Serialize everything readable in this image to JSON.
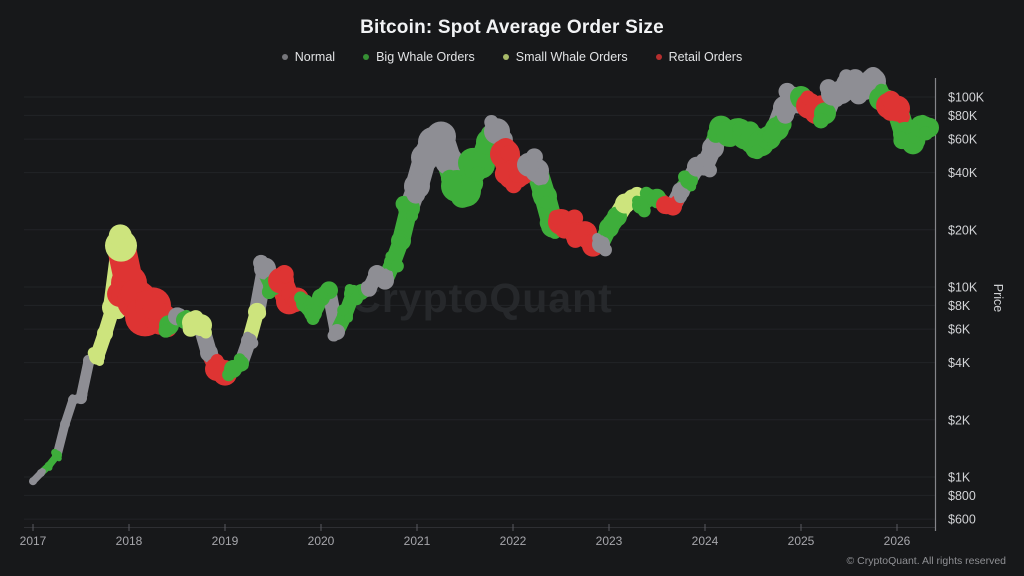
{
  "header": {
    "title": "Bitcoin: Spot Average Order Size"
  },
  "footer": {
    "copyright": "© CryptoQuant. All rights reserved"
  },
  "watermark": "CryptoQuant",
  "chart_data": {
    "type": "scatter",
    "title": "Bitcoin: Spot Average Order Size",
    "ylabel": "Price",
    "y_scale": "log",
    "grid": true,
    "legend_position": "top",
    "x_ticks": [
      "2017",
      "2018",
      "2019",
      "2020",
      "2021",
      "2022",
      "2023",
      "2024",
      "2025",
      "2026"
    ],
    "y_ticks": [
      {
        "label": "$100K",
        "value": 100000
      },
      {
        "label": "$80K",
        "value": 80000
      },
      {
        "label": "$60K",
        "value": 60000
      },
      {
        "label": "$40K",
        "value": 40000
      },
      {
        "label": "$20K",
        "value": 20000
      },
      {
        "label": "$10K",
        "value": 10000
      },
      {
        "label": "$8K",
        "value": 8000
      },
      {
        "label": "$6K",
        "value": 6000
      },
      {
        "label": "$4K",
        "value": 4000
      },
      {
        "label": "$2K",
        "value": 2000
      },
      {
        "label": "$1K",
        "value": 1000
      },
      {
        "label": "$800",
        "value": 800
      },
      {
        "label": "$600",
        "value": 600
      }
    ],
    "legend": [
      {
        "key": "normal",
        "label": "Normal"
      },
      {
        "key": "big_whale",
        "label": "Big Whale Orders"
      },
      {
        "key": "small_whale",
        "label": "Small Whale Orders"
      },
      {
        "key": "retail",
        "label": "Retail Orders"
      }
    ],
    "colors": {
      "normal": "#8e8e94",
      "big_whale": "#3eae3b",
      "small_whale": "#cde47d",
      "retail": "#de3433"
    },
    "size_meaning": "marker radius encodes spot average order size (px)",
    "points": [
      {
        "t": "2017-01",
        "price": 950,
        "category": "normal",
        "size": 4
      },
      {
        "t": "2017-02",
        "price": 1050,
        "category": "normal",
        "size": 4
      },
      {
        "t": "2017-03",
        "price": 1150,
        "category": "big_whale",
        "size": 4
      },
      {
        "t": "2017-04",
        "price": 1300,
        "category": "big_whale",
        "size": 5
      },
      {
        "t": "2017-05",
        "price": 1900,
        "category": "normal",
        "size": 5
      },
      {
        "t": "2017-06",
        "price": 2550,
        "category": "normal",
        "size": 5
      },
      {
        "t": "2017-07",
        "price": 2600,
        "category": "normal",
        "size": 6
      },
      {
        "t": "2017-08",
        "price": 4100,
        "category": "normal",
        "size": 6
      },
      {
        "t": "2017-09",
        "price": 4300,
        "category": "small_whale",
        "size": 8
      },
      {
        "t": "2017-10",
        "price": 5700,
        "category": "small_whale",
        "size": 8
      },
      {
        "t": "2017-11",
        "price": 7800,
        "category": "small_whale",
        "size": 11
      },
      {
        "t": "2017-12",
        "price": 16500,
        "category": "small_whale",
        "size": 16
      },
      {
        "t": "2018-01",
        "price": 10500,
        "category": "retail",
        "size": 18
      },
      {
        "t": "2018-02",
        "price": 8500,
        "category": "retail",
        "size": 20
      },
      {
        "t": "2018-03",
        "price": 7000,
        "category": "retail",
        "size": 20
      },
      {
        "t": "2018-04",
        "price": 8000,
        "category": "retail",
        "size": 18
      },
      {
        "t": "2018-05",
        "price": 6800,
        "category": "retail",
        "size": 16
      },
      {
        "t": "2018-06",
        "price": 6300,
        "category": "big_whale",
        "size": 10
      },
      {
        "t": "2018-07",
        "price": 7000,
        "category": "normal",
        "size": 9
      },
      {
        "t": "2018-08",
        "price": 6700,
        "category": "big_whale",
        "size": 9
      },
      {
        "t": "2018-09",
        "price": 6500,
        "category": "small_whale",
        "size": 11
      },
      {
        "t": "2018-10",
        "price": 6300,
        "category": "small_whale",
        "size": 11
      },
      {
        "t": "2018-11",
        "price": 4500,
        "category": "normal",
        "size": 9
      },
      {
        "t": "2018-12",
        "price": 3700,
        "category": "retail",
        "size": 12
      },
      {
        "t": "2019-01",
        "price": 3500,
        "category": "retail",
        "size": 12
      },
      {
        "t": "2019-02",
        "price": 3700,
        "category": "big_whale",
        "size": 9
      },
      {
        "t": "2019-03",
        "price": 3950,
        "category": "big_whale",
        "size": 8
      },
      {
        "t": "2019-04",
        "price": 5200,
        "category": "normal",
        "size": 8
      },
      {
        "t": "2019-05",
        "price": 7400,
        "category": "small_whale",
        "size": 9
      },
      {
        "t": "2019-06",
        "price": 12500,
        "category": "normal",
        "size": 11
      },
      {
        "t": "2019-07",
        "price": 10200,
        "category": "big_whale",
        "size": 10
      },
      {
        "t": "2019-08",
        "price": 10800,
        "category": "retail",
        "size": 13
      },
      {
        "t": "2019-09",
        "price": 8400,
        "category": "retail",
        "size": 13
      },
      {
        "t": "2019-10",
        "price": 8600,
        "category": "retail",
        "size": 12
      },
      {
        "t": "2019-11",
        "price": 8200,
        "category": "big_whale",
        "size": 9
      },
      {
        "t": "2019-12",
        "price": 7300,
        "category": "big_whale",
        "size": 9
      },
      {
        "t": "2020-01",
        "price": 8800,
        "category": "big_whale",
        "size": 9
      },
      {
        "t": "2020-02",
        "price": 9600,
        "category": "big_whale",
        "size": 9
      },
      {
        "t": "2020-03",
        "price": 5800,
        "category": "normal",
        "size": 8
      },
      {
        "t": "2020-04",
        "price": 7100,
        "category": "big_whale",
        "size": 8
      },
      {
        "t": "2020-05",
        "price": 9200,
        "category": "big_whale",
        "size": 9
      },
      {
        "t": "2020-06",
        "price": 9400,
        "category": "big_whale",
        "size": 8
      },
      {
        "t": "2020-07",
        "price": 9800,
        "category": "normal",
        "size": 8
      },
      {
        "t": "2020-08",
        "price": 11700,
        "category": "normal",
        "size": 9
      },
      {
        "t": "2020-09",
        "price": 10800,
        "category": "normal",
        "size": 9
      },
      {
        "t": "2020-10",
        "price": 13500,
        "category": "big_whale",
        "size": 9
      },
      {
        "t": "2020-11",
        "price": 17500,
        "category": "big_whale",
        "size": 10
      },
      {
        "t": "2020-12",
        "price": 26000,
        "category": "big_whale",
        "size": 11
      },
      {
        "t": "2021-01",
        "price": 34000,
        "category": "normal",
        "size": 13
      },
      {
        "t": "2021-02",
        "price": 48000,
        "category": "normal",
        "size": 14
      },
      {
        "t": "2021-03",
        "price": 58000,
        "category": "normal",
        "size": 15
      },
      {
        "t": "2021-04",
        "price": 62000,
        "category": "normal",
        "size": 15
      },
      {
        "t": "2021-05",
        "price": 46000,
        "category": "normal",
        "size": 14
      },
      {
        "t": "2021-06",
        "price": 34000,
        "category": "big_whale",
        "size": 16
      },
      {
        "t": "2021-07",
        "price": 32000,
        "category": "big_whale",
        "size": 16
      },
      {
        "t": "2021-08",
        "price": 45000,
        "category": "big_whale",
        "size": 15
      },
      {
        "t": "2021-09",
        "price": 44000,
        "category": "big_whale",
        "size": 14
      },
      {
        "t": "2021-10",
        "price": 58000,
        "category": "big_whale",
        "size": 13
      },
      {
        "t": "2021-11",
        "price": 66000,
        "category": "normal",
        "size": 13
      },
      {
        "t": "2021-12",
        "price": 50000,
        "category": "retail",
        "size": 15
      },
      {
        "t": "2022-01",
        "price": 39000,
        "category": "retail",
        "size": 15
      },
      {
        "t": "2022-02",
        "price": 40000,
        "category": "retail",
        "size": 13
      },
      {
        "t": "2022-03",
        "price": 44000,
        "category": "normal",
        "size": 12
      },
      {
        "t": "2022-04",
        "price": 41000,
        "category": "normal",
        "size": 12
      },
      {
        "t": "2022-05",
        "price": 30000,
        "category": "big_whale",
        "size": 12
      },
      {
        "t": "2022-06",
        "price": 21000,
        "category": "big_whale",
        "size": 12
      },
      {
        "t": "2022-07",
        "price": 22000,
        "category": "retail",
        "size": 13
      },
      {
        "t": "2022-08",
        "price": 21000,
        "category": "retail",
        "size": 12
      },
      {
        "t": "2022-09",
        "price": 19000,
        "category": "retail",
        "size": 12
      },
      {
        "t": "2022-10",
        "price": 19200,
        "category": "retail",
        "size": 12
      },
      {
        "t": "2022-11",
        "price": 16500,
        "category": "retail",
        "size": 11
      },
      {
        "t": "2022-12",
        "price": 16800,
        "category": "normal",
        "size": 9
      },
      {
        "t": "2023-01",
        "price": 20500,
        "category": "big_whale",
        "size": 10
      },
      {
        "t": "2023-02",
        "price": 23500,
        "category": "big_whale",
        "size": 10
      },
      {
        "t": "2023-03",
        "price": 27500,
        "category": "small_whale",
        "size": 10
      },
      {
        "t": "2023-04",
        "price": 29000,
        "category": "small_whale",
        "size": 10
      },
      {
        "t": "2023-05",
        "price": 27000,
        "category": "big_whale",
        "size": 9
      },
      {
        "t": "2023-06",
        "price": 29500,
        "category": "big_whale",
        "size": 9
      },
      {
        "t": "2023-07",
        "price": 29500,
        "category": "big_whale",
        "size": 9
      },
      {
        "t": "2023-08",
        "price": 27000,
        "category": "retail",
        "size": 9
      },
      {
        "t": "2023-09",
        "price": 26500,
        "category": "retail",
        "size": 9
      },
      {
        "t": "2023-10",
        "price": 32000,
        "category": "normal",
        "size": 9
      },
      {
        "t": "2023-11",
        "price": 36500,
        "category": "big_whale",
        "size": 9
      },
      {
        "t": "2023-12",
        "price": 43000,
        "category": "normal",
        "size": 10
      },
      {
        "t": "2024-01",
        "price": 43500,
        "category": "normal",
        "size": 10
      },
      {
        "t": "2024-02",
        "price": 54000,
        "category": "normal",
        "size": 11
      },
      {
        "t": "2024-03",
        "price": 69000,
        "category": "big_whale",
        "size": 12
      },
      {
        "t": "2024-04",
        "price": 64000,
        "category": "big_whale",
        "size": 13
      },
      {
        "t": "2024-05",
        "price": 66000,
        "category": "big_whale",
        "size": 13
      },
      {
        "t": "2024-06",
        "price": 62000,
        "category": "big_whale",
        "size": 13
      },
      {
        "t": "2024-07",
        "price": 60000,
        "category": "big_whale",
        "size": 13
      },
      {
        "t": "2024-08",
        "price": 57000,
        "category": "big_whale",
        "size": 13
      },
      {
        "t": "2024-09",
        "price": 61000,
        "category": "big_whale",
        "size": 12
      },
      {
        "t": "2024-10",
        "price": 68000,
        "category": "big_whale",
        "size": 12
      },
      {
        "t": "2024-11",
        "price": 88000,
        "category": "normal",
        "size": 12
      },
      {
        "t": "2024-12",
        "price": 98000,
        "category": "normal",
        "size": 12
      },
      {
        "t": "2025-01",
        "price": 100000,
        "category": "big_whale",
        "size": 11
      },
      {
        "t": "2025-02",
        "price": 90000,
        "category": "retail",
        "size": 13
      },
      {
        "t": "2025-03",
        "price": 84000,
        "category": "retail",
        "size": 13
      },
      {
        "t": "2025-04",
        "price": 82000,
        "category": "big_whale",
        "size": 11
      },
      {
        "t": "2025-05",
        "price": 104000,
        "category": "normal",
        "size": 12
      },
      {
        "t": "2025-06",
        "price": 106000,
        "category": "normal",
        "size": 12
      },
      {
        "t": "2025-07",
        "price": 116000,
        "category": "normal",
        "size": 13
      },
      {
        "t": "2025-08",
        "price": 114000,
        "category": "normal",
        "size": 13
      },
      {
        "t": "2025-09",
        "price": 113000,
        "category": "normal",
        "size": 13
      },
      {
        "t": "2025-10",
        "price": 121000,
        "category": "normal",
        "size": 13
      },
      {
        "t": "2025-11",
        "price": 98000,
        "category": "big_whale",
        "size": 12
      },
      {
        "t": "2025-12",
        "price": 90000,
        "category": "retail",
        "size": 13
      },
      {
        "t": "2026-01",
        "price": 87000,
        "category": "retail",
        "size": 13
      },
      {
        "t": "2026-02",
        "price": 64000,
        "category": "big_whale",
        "size": 12
      },
      {
        "t": "2026-03",
        "price": 57000,
        "category": "big_whale",
        "size": 11
      },
      {
        "t": "2026-04",
        "price": 70000,
        "category": "big_whale",
        "size": 11
      },
      {
        "t": "2026-05",
        "price": 69000,
        "category": "big_whale",
        "size": 10
      }
    ]
  }
}
